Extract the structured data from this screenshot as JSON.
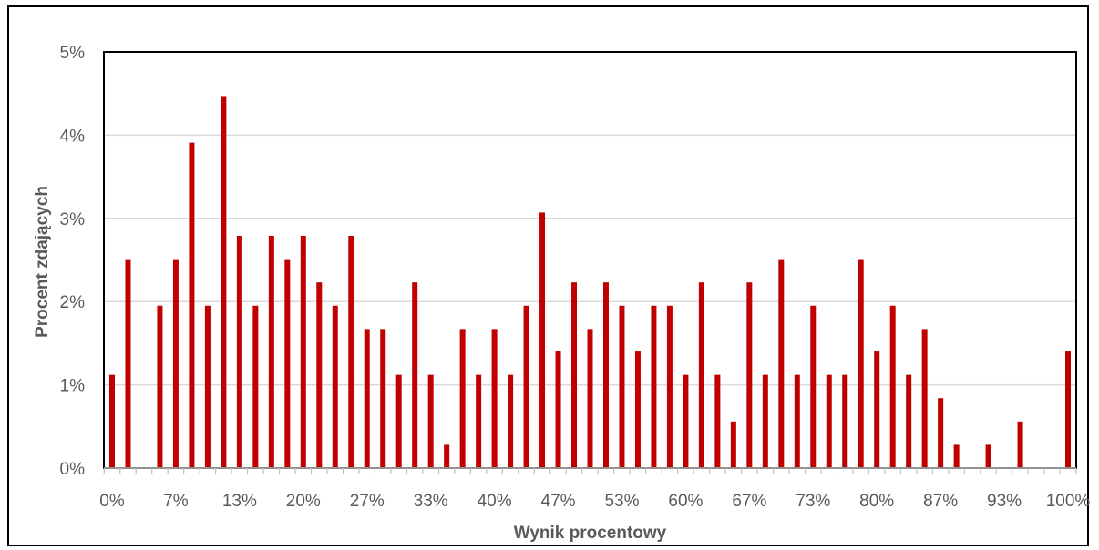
{
  "chart_data": {
    "type": "bar",
    "xlabel": "Wynik procentowy",
    "ylabel": "Procent  zdających",
    "ylim": [
      0,
      5
    ],
    "y_ticks": [
      "0%",
      "1%",
      "2%",
      "3%",
      "4%",
      "5%"
    ],
    "x_tick_labels": [
      "0%",
      "7%",
      "13%",
      "20%",
      "27%",
      "33%",
      "40%",
      "47%",
      "53%",
      "60%",
      "67%",
      "73%",
      "80%",
      "87%",
      "93%",
      "100%"
    ],
    "grid": true,
    "bar_color": "#C00000",
    "categories": [
      "0%",
      "1.7%",
      "3.3%",
      "5%",
      "6.7%",
      "8.3%",
      "10%",
      "11.7%",
      "13.3%",
      "15%",
      "16.7%",
      "18.3%",
      "20%",
      "21.7%",
      "23.3%",
      "25%",
      "26.7%",
      "28.3%",
      "30%",
      "31.7%",
      "33.3%",
      "35%",
      "36.7%",
      "38.3%",
      "40%",
      "41.7%",
      "43.3%",
      "45%",
      "46.7%",
      "48.3%",
      "50%",
      "51.7%",
      "53.3%",
      "55%",
      "56.7%",
      "58.3%",
      "60%",
      "61.7%",
      "63.3%",
      "65%",
      "66.7%",
      "68.3%",
      "70%",
      "71.7%",
      "73.3%",
      "75%",
      "76.7%",
      "78.3%",
      "80%",
      "81.7%",
      "83.3%",
      "85%",
      "86.7%",
      "88.3%",
      "90%",
      "91.7%",
      "93.3%",
      "95%",
      "96.7%",
      "98.3%",
      "100%"
    ],
    "values": [
      1.12,
      2.51,
      0,
      1.95,
      2.51,
      3.91,
      1.95,
      4.47,
      2.79,
      1.95,
      2.79,
      2.51,
      2.79,
      2.23,
      1.95,
      2.79,
      1.67,
      1.67,
      1.12,
      2.23,
      1.12,
      0.28,
      1.67,
      1.12,
      1.67,
      1.12,
      1.95,
      3.07,
      1.4,
      2.23,
      1.67,
      2.23,
      1.95,
      1.4,
      1.95,
      1.95,
      1.12,
      2.23,
      1.12,
      0.56,
      2.23,
      1.12,
      2.51,
      1.12,
      1.95,
      1.12,
      1.12,
      2.51,
      1.4,
      1.95,
      1.12,
      1.67,
      0.84,
      0.28,
      0,
      0.28,
      0,
      0.56,
      0,
      0,
      1.4
    ]
  }
}
